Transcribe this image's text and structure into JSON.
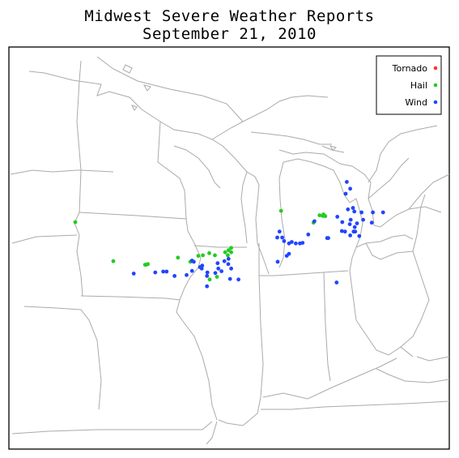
{
  "title_line1": "Midwest Severe Weather Reports",
  "title_line2": "September 21, 2010",
  "legend": [
    {
      "label": "Tornado",
      "color": "#ff3333"
    },
    {
      "label": "Hail",
      "color": "#22cc22"
    },
    {
      "label": "Wind",
      "color": "#2244ff"
    }
  ],
  "colors": {
    "boundary": "#aaaaaa",
    "frame": "#000000"
  },
  "reports": {
    "tornado": [],
    "hail": [
      [
        -95.63,
        43.42
      ],
      [
        -93.95,
        42.1
      ],
      [
        -92.5,
        41.98
      ],
      [
        -92.55,
        41.98
      ],
      [
        -92.43,
        42.0
      ],
      [
        -91.1,
        42.22
      ],
      [
        -90.55,
        42.08
      ],
      [
        -90.2,
        42.28
      ],
      [
        -90.0,
        42.3
      ],
      [
        -89.72,
        42.37
      ],
      [
        -89.47,
        42.3
      ],
      [
        -89.02,
        42.4
      ],
      [
        -88.9,
        42.3
      ],
      [
        -88.87,
        42.47
      ],
      [
        -88.75,
        42.4
      ],
      [
        -88.75,
        42.55
      ],
      [
        -89.38,
        41.57
      ],
      [
        -89.7,
        41.48
      ],
      [
        -86.55,
        43.8
      ],
      [
        -85.12,
        43.4
      ],
      [
        -84.85,
        43.65
      ],
      [
        -84.72,
        43.63
      ],
      [
        -84.68,
        43.68
      ],
      [
        -84.6,
        43.62
      ]
    ],
    "wind": [
      [
        -93.05,
        41.68
      ],
      [
        -92.1,
        41.72
      ],
      [
        -91.75,
        41.75
      ],
      [
        -91.6,
        41.75
      ],
      [
        -91.25,
        41.6
      ],
      [
        -90.72,
        41.63
      ],
      [
        -90.48,
        41.77
      ],
      [
        -90.48,
        42.12
      ],
      [
        -90.05,
        41.85
      ],
      [
        -90.13,
        41.9
      ],
      [
        -90.4,
        42.08
      ],
      [
        -89.82,
        41.6
      ],
      [
        -90.03,
        41.95
      ],
      [
        -89.82,
        41.25
      ],
      [
        -89.8,
        41.72
      ],
      [
        -89.32,
        41.85
      ],
      [
        -89.18,
        41.76
      ],
      [
        -89.45,
        41.7
      ],
      [
        -89.35,
        42.03
      ],
      [
        -88.87,
        42.18
      ],
      [
        -89.05,
        42.1
      ],
      [
        -88.88,
        42.0
      ],
      [
        -88.75,
        41.85
      ],
      [
        -88.43,
        41.48
      ],
      [
        -88.8,
        41.5
      ],
      [
        -86.62,
        43.1
      ],
      [
        -86.72,
        42.9
      ],
      [
        -86.5,
        42.9
      ],
      [
        -86.42,
        42.78
      ],
      [
        -86.2,
        42.7
      ],
      [
        -86.08,
        42.75
      ],
      [
        -85.9,
        42.7
      ],
      [
        -85.72,
        42.7
      ],
      [
        -85.6,
        42.72
      ],
      [
        -86.2,
        42.35
      ],
      [
        -86.3,
        42.28
      ],
      [
        -86.7,
        42.08
      ],
      [
        -85.35,
        43.0
      ],
      [
        -85.08,
        43.45
      ],
      [
        -84.52,
        42.88
      ],
      [
        -84.47,
        42.88
      ],
      [
        -84.07,
        43.6
      ],
      [
        -83.85,
        43.42
      ],
      [
        -83.87,
        43.12
      ],
      [
        -83.73,
        43.1
      ],
      [
        -83.48,
        43.5
      ],
      [
        -83.2,
        43.38
      ],
      [
        -83.52,
        43.35
      ],
      [
        -83.28,
        43.1
      ],
      [
        -83.1,
        42.95
      ],
      [
        -83.5,
        42.97
      ],
      [
        -83.35,
        43.1
      ],
      [
        -82.93,
        43.5
      ],
      [
        -82.55,
        43.4
      ],
      [
        -82.05,
        43.75
      ],
      [
        -82.5,
        43.75
      ],
      [
        -83.0,
        43.75
      ],
      [
        -83.32,
        43.78
      ],
      [
        -83.6,
        43.85
      ],
      [
        -83.7,
        44.38
      ],
      [
        -83.65,
        44.78
      ],
      [
        -83.5,
        44.55
      ],
      [
        -83.38,
        43.9
      ],
      [
        -84.1,
        41.38
      ],
      [
        -83.3,
        43.25
      ]
    ]
  }
}
